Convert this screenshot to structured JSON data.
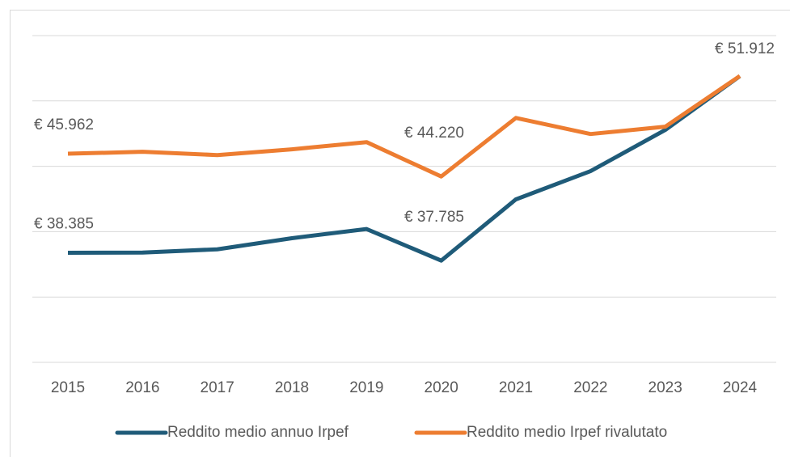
{
  "chart_data": {
    "type": "line",
    "categories": [
      "2015",
      "2016",
      "2017",
      "2018",
      "2019",
      "2020",
      "2021",
      "2022",
      "2023",
      "2024"
    ],
    "series": [
      {
        "name": "Reddito medio annuo Irpef",
        "color": "#1f5b79",
        "values": [
          38385,
          38400,
          38650,
          39500,
          40200,
          37785,
          42470,
          44630,
          47780,
          51900
        ],
        "value_labels": [
          "€ 38.385",
          null,
          null,
          null,
          null,
          "€ 37.785",
          null,
          null,
          null,
          null
        ]
      },
      {
        "name": "Reddito medio Irpef rivalutato",
        "color": "#ed7d31",
        "values": [
          45962,
          46110,
          45860,
          46300,
          46850,
          44220,
          48700,
          47470,
          48030,
          51912
        ],
        "value_labels": [
          "€ 45.962",
          null,
          null,
          null,
          null,
          "€ 44.220",
          null,
          null,
          null,
          "€ 51.912"
        ]
      }
    ],
    "ylim": [
      30000,
      55000
    ],
    "yticks": [
      30000,
      35000,
      40000,
      45000,
      50000,
      55000
    ],
    "grid": true,
    "show_y_tick_labels": false,
    "legend": "bottom"
  }
}
